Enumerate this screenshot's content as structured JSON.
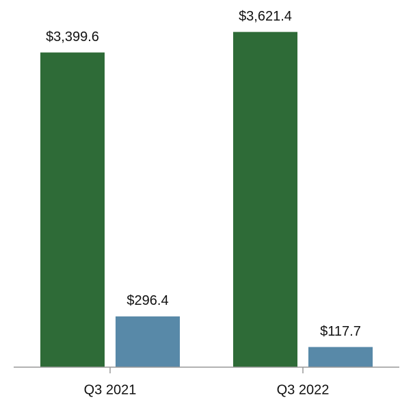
{
  "chart_data": {
    "type": "bar",
    "categories": [
      "Q3 2021",
      "Q3 2022"
    ],
    "series": [
      {
        "color": "#2e6b37",
        "values": [
          3399.6,
          3621.4
        ],
        "value_labels": [
          "$3,399.6",
          "$3,621.4"
        ]
      },
      {
        "color": "#5889a8",
        "values": [
          296.4,
          117.7
        ],
        "value_labels": [
          "$296.4",
          "$117.7"
        ],
        "axis": "y2"
      }
    ],
    "ylim": [
      0,
      3700
    ],
    "y2lim": [
      0,
      2000
    ]
  }
}
